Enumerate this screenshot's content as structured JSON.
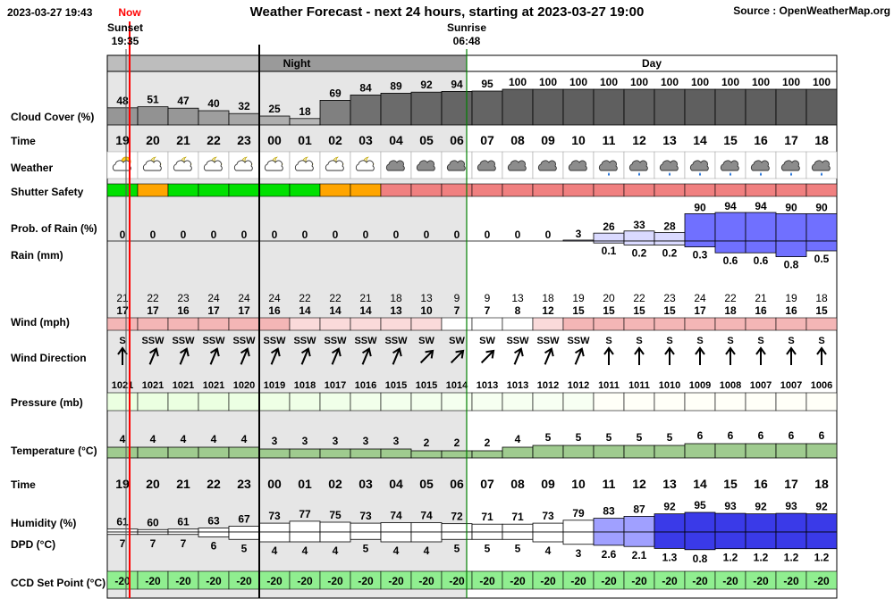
{
  "header": {
    "timestamp": "2023-03-27 19:43",
    "now_label": "Now",
    "title": "Weather Forecast - next 24 hours, starting at 2023-03-27 19:00",
    "source": "Source : OpenWeatherMap.org",
    "sunset_label": "Sunset",
    "sunset_time": "19:35",
    "sunrise_label": "Sunrise",
    "sunrise_time": "06:48",
    "night_label": "Night",
    "day_label": "Day"
  },
  "row_labels": {
    "cloud": "Cloud Cover (%)",
    "time": "Time",
    "weather": "Weather",
    "shutter": "Shutter Safety",
    "prob_rain": "Prob. of Rain (%)",
    "rain": "Rain (mm)",
    "wind": "Wind (mph)",
    "wind_dir": "Wind Direction",
    "pressure": "Pressure (mb)",
    "temperature": "Temperature (°C)",
    "time2": "Time",
    "humidity": "Humidity (%)",
    "dpd": "DPD (°C)",
    "ccd": "CCD Set Point (°C)"
  },
  "colors": {
    "night_shade": "#e6e6e6",
    "now_line": "#ff0000",
    "sunrise_line": "#008000",
    "safe": "#00e000",
    "marginal": "#ffa500",
    "unsafe": "#f08080",
    "rain_bar": "#7070ff",
    "ccd": "#90ee90"
  },
  "chart_data": {
    "type": "table",
    "hours": [
      "19",
      "20",
      "21",
      "22",
      "23",
      "00",
      "01",
      "02",
      "03",
      "04",
      "05",
      "06",
      "07",
      "08",
      "09",
      "10",
      "11",
      "12",
      "13",
      "14",
      "15",
      "16",
      "17",
      "18"
    ],
    "cloud_cover": [
      48,
      51,
      47,
      40,
      32,
      25,
      18,
      69,
      84,
      89,
      92,
      94,
      95,
      100,
      100,
      100,
      100,
      100,
      100,
      100,
      100,
      100,
      100,
      100
    ],
    "weather_icons": [
      "partly-cloudy-day",
      "partly-cloudy-night",
      "partly-cloudy-night",
      "partly-cloudy-night",
      "partly-cloudy-night",
      "partly-cloudy-night",
      "partly-cloudy-night",
      "partly-cloudy-night",
      "partly-cloudy-night",
      "cloudy",
      "cloudy",
      "cloudy",
      "cloudy",
      "cloudy",
      "cloudy",
      "cloudy",
      "rain",
      "rain",
      "rain",
      "rain",
      "rain",
      "rain",
      "rain",
      "rain"
    ],
    "shutter_safety": [
      "safe",
      "marginal",
      "safe",
      "safe",
      "safe",
      "safe",
      "safe",
      "marginal",
      "marginal",
      "unsafe",
      "unsafe",
      "unsafe",
      "unsafe",
      "unsafe",
      "unsafe",
      "unsafe",
      "unsafe",
      "unsafe",
      "unsafe",
      "unsafe",
      "unsafe",
      "unsafe",
      "unsafe",
      "unsafe"
    ],
    "prob_rain": [
      0,
      0,
      0,
      0,
      0,
      0,
      0,
      0,
      0,
      0,
      0,
      0,
      0,
      0,
      0,
      3,
      26,
      33,
      28,
      90,
      94,
      94,
      90,
      90
    ],
    "rain_mm": [
      "",
      "",
      "",
      "",
      "",
      "",
      "",
      "",
      "",
      "",
      "",
      "",
      "",
      "",
      "",
      "",
      "0.1",
      "0.2",
      "0.2",
      "0.3",
      "0.6",
      "0.6",
      "0.8",
      "0.5"
    ],
    "wind_gust": [
      21,
      22,
      23,
      24,
      24,
      24,
      22,
      22,
      21,
      18,
      13,
      9,
      9,
      13,
      18,
      19,
      20,
      22,
      23,
      24,
      22,
      21,
      19,
      18
    ],
    "wind_speed": [
      17,
      17,
      16,
      17,
      17,
      16,
      14,
      14,
      14,
      13,
      10,
      7,
      7,
      8,
      12,
      15,
      15,
      15,
      15,
      17,
      18,
      16,
      16,
      15
    ],
    "wind_dir_label": [
      "S",
      "SSW",
      "SSW",
      "SSW",
      "SSW",
      "SSW",
      "SSW",
      "SSW",
      "SSW",
      "SSW",
      "SW",
      "SW",
      "SW",
      "SSW",
      "SSW",
      "SSW",
      "S",
      "S",
      "S",
      "S",
      "S",
      "S",
      "S",
      "S"
    ],
    "wind_dir_deg": [
      180,
      202.5,
      202.5,
      202.5,
      202.5,
      202.5,
      202.5,
      202.5,
      202.5,
      202.5,
      225,
      225,
      225,
      202.5,
      202.5,
      202.5,
      180,
      180,
      180,
      180,
      180,
      180,
      180,
      180
    ],
    "pressure": [
      1021,
      1021,
      1021,
      1021,
      1020,
      1019,
      1018,
      1017,
      1016,
      1015,
      1015,
      1014,
      1013,
      1013,
      1012,
      1012,
      1011,
      1011,
      1010,
      1009,
      1008,
      1007,
      1007,
      1006
    ],
    "temperature": [
      4,
      4,
      4,
      4,
      4,
      3,
      3,
      3,
      3,
      3,
      2,
      2,
      2,
      4,
      5,
      5,
      5,
      5,
      5,
      6,
      6,
      6,
      6,
      6
    ],
    "humidity": [
      61,
      60,
      61,
      63,
      67,
      73,
      77,
      75,
      73,
      74,
      74,
      72,
      71,
      71,
      73,
      79,
      83,
      87,
      92,
      95,
      93,
      92,
      93,
      92
    ],
    "dpd": [
      "7",
      "7",
      "7",
      "6",
      "5",
      "4",
      "4",
      "4",
      "5",
      "4",
      "4",
      "5",
      "5",
      "5",
      "4",
      "3",
      "2.6",
      "2.1",
      "1.3",
      "0.8",
      "1.2",
      "1.2",
      "1.2",
      "1.2"
    ],
    "ccd_set_point": [
      -20,
      -20,
      -20,
      -20,
      -20,
      -20,
      -20,
      -20,
      -20,
      -20,
      -20,
      -20,
      -20,
      -20,
      -20,
      -20,
      -20,
      -20,
      -20,
      -20,
      -20,
      -20,
      -20,
      -20
    ]
  }
}
